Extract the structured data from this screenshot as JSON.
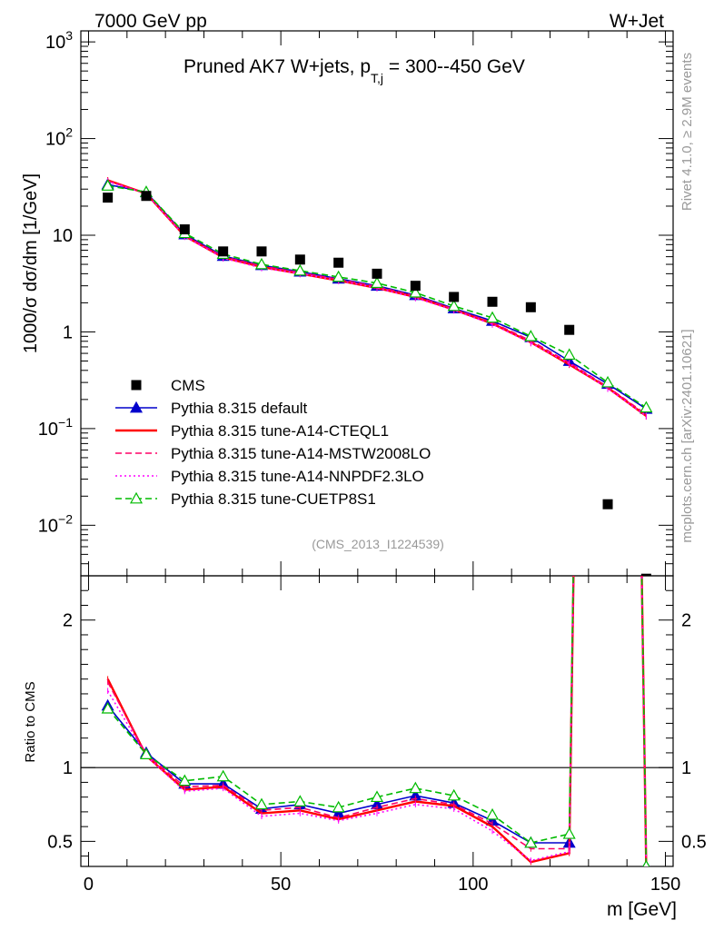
{
  "header": {
    "left": "7000 GeV pp",
    "right": "W+Jet"
  },
  "side_labels": {
    "rivet": "Rivet 4.1.0, ≥ 2.9M events",
    "mcplots": "mcplots.cern.ch [arXiv:2401.10621]"
  },
  "chart_data": {
    "type": "line",
    "title_main": "Pruned AK7 W+jets, p",
    "title_sub": "T,j",
    "title_tail": " = 300--450 GeV",
    "analysis_id": "(CMS_2013_I1224539)",
    "xlabel": "m [GeV]",
    "ylabel": "1000/σ  dσ/dm [1/GeV]",
    "ratio_ylabel": "Ratio to CMS",
    "xlim": [
      -2,
      152
    ],
    "ylim": [
      0.003,
      1300
    ],
    "yscale": "log",
    "ratio_ylim": [
      0.33,
      2.3
    ],
    "x_ticks": [
      0,
      50,
      100,
      150
    ],
    "y_tick_labels": [
      {
        "value": 1000,
        "base": "10",
        "exp": "3"
      },
      {
        "value": 100,
        "base": "10",
        "exp": "2"
      },
      {
        "value": 10,
        "base": "10",
        "exp": ""
      },
      {
        "value": 1,
        "base": "1",
        "exp": ""
      },
      {
        "value": 0.1,
        "base": "10",
        "exp": "−1"
      },
      {
        "value": 0.01,
        "base": "10",
        "exp": "−2"
      }
    ],
    "ratio_tick_labels": [
      {
        "value": 2,
        "label": "2"
      },
      {
        "value": 1,
        "label": "1"
      },
      {
        "value": 0.5,
        "label": "0.5"
      }
    ],
    "x": [
      5,
      15,
      25,
      35,
      45,
      55,
      65,
      75,
      85,
      95,
      105,
      115,
      125,
      135,
      145
    ],
    "data": {
      "name": "CMS",
      "values": [
        24.5,
        25.5,
        11.5,
        6.8,
        6.8,
        5.6,
        5.2,
        4.0,
        3.0,
        2.3,
        2.05,
        1.8,
        1.05,
        0.0165,
        0.0028
      ]
    },
    "series": [
      {
        "name": "Pythia 8.315 default",
        "color": "#0000cc",
        "style": "solid",
        "marker": "triangle-filled",
        "values": [
          33.5,
          27.8,
          10.2,
          6.1,
          4.9,
          4.2,
          3.55,
          3.0,
          2.4,
          1.75,
          1.3,
          0.88,
          0.5,
          0.29,
          0.16
        ],
        "ratio": [
          1.42,
          1.1,
          0.89,
          0.89,
          0.72,
          0.75,
          0.69,
          0.75,
          0.81,
          0.76,
          0.64,
          0.49,
          0.49,
          17.5,
          0.33
        ]
      },
      {
        "name": "Pythia 8.315 tune-A14-CTEQL1",
        "color": "#ff0000",
        "style": "solid",
        "marker": "none",
        "values": [
          37.0,
          27.0,
          9.8,
          5.9,
          4.7,
          4.0,
          3.4,
          2.85,
          2.3,
          1.7,
          1.22,
          0.78,
          0.46,
          0.265,
          0.135
        ],
        "ratio": [
          1.6,
          1.08,
          0.85,
          0.87,
          0.69,
          0.71,
          0.65,
          0.71,
          0.77,
          0.74,
          0.6,
          0.36,
          0.42,
          17.5,
          0.33
        ]
      },
      {
        "name": "Pythia 8.315 tune-A14-MSTW2008LO",
        "color": "#ff0066",
        "style": "dashed",
        "marker": "none",
        "values": [
          36.5,
          27.2,
          9.9,
          6.0,
          4.8,
          4.1,
          3.5,
          2.95,
          2.35,
          1.72,
          1.25,
          0.81,
          0.48,
          0.27,
          0.14
        ],
        "ratio": [
          1.58,
          1.09,
          0.87,
          0.88,
          0.71,
          0.73,
          0.66,
          0.73,
          0.79,
          0.75,
          0.62,
          0.45,
          0.45,
          17.5,
          0.33
        ]
      },
      {
        "name": "Pythia 8.315 tune-A14-NNPDF2.3LO",
        "color": "#ff00ff",
        "style": "dotted",
        "marker": "none",
        "values": [
          36.0,
          27.0,
          9.7,
          5.8,
          4.6,
          4.0,
          3.4,
          2.85,
          2.25,
          1.68,
          1.2,
          0.77,
          0.47,
          0.26,
          0.135
        ],
        "ratio": [
          1.52,
          1.08,
          0.84,
          0.86,
          0.67,
          0.69,
          0.64,
          0.69,
          0.75,
          0.72,
          0.57,
          0.37,
          0.43,
          17.5,
          0.33
        ]
      },
      {
        "name": "Pythia 8.315 tune-CUETP8S1",
        "color": "#00bb00",
        "style": "dashed",
        "marker": "triangle-open",
        "values": [
          32.5,
          28.0,
          10.5,
          6.4,
          5.0,
          4.3,
          3.7,
          3.2,
          2.55,
          1.85,
          1.4,
          0.9,
          0.58,
          0.3,
          0.165
        ],
        "ratio": [
          1.4,
          1.09,
          0.91,
          0.94,
          0.75,
          0.77,
          0.73,
          0.8,
          0.86,
          0.81,
          0.68,
          0.49,
          0.55,
          17.5,
          0.33
        ]
      }
    ]
  }
}
